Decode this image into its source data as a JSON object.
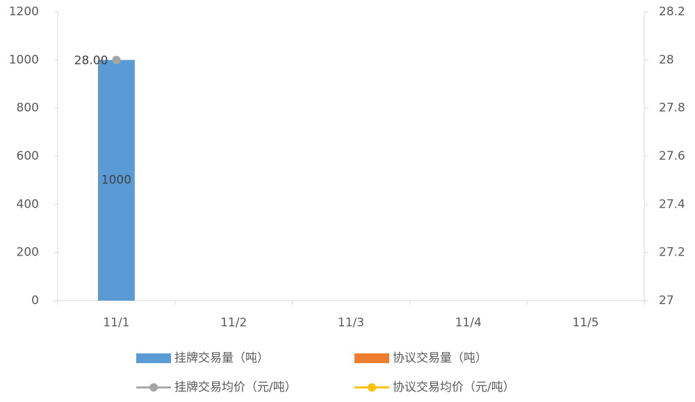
{
  "chart_data": {
    "type": "bar",
    "categories": [
      "11/1",
      "11/2",
      "11/3",
      "11/4",
      "11/5"
    ],
    "series": [
      {
        "name": "挂牌交易量（吨）",
        "color": "#5b9bd5",
        "values": [
          1000,
          null,
          null,
          null,
          null
        ]
      },
      {
        "name": "协议交易量（吨）",
        "color": "#ed7d31",
        "values": [
          null,
          null,
          null,
          null,
          null
        ]
      },
      {
        "name": "挂牌交易均价（元/吨）",
        "color": "#a5a5a5",
        "type": "line",
        "axis": "y2",
        "values": [
          28,
          null,
          null,
          null,
          null
        ],
        "value_labels": [
          "28.00",
          null,
          null,
          null,
          null
        ]
      },
      {
        "name": "协议交易均价（元/吨）",
        "color": "#ffc000",
        "type": "line",
        "axis": "y2",
        "values": [
          null,
          null,
          null,
          null,
          null
        ]
      }
    ],
    "ylim": [
      0,
      1200
    ],
    "yticks": [
      0,
      200,
      400,
      600,
      800,
      1000,
      1200
    ],
    "y2lim": [
      27,
      28.2
    ],
    "y2ticks": [
      27,
      27.2,
      27.4,
      27.6,
      27.8,
      28,
      28.2
    ],
    "grid": false
  }
}
